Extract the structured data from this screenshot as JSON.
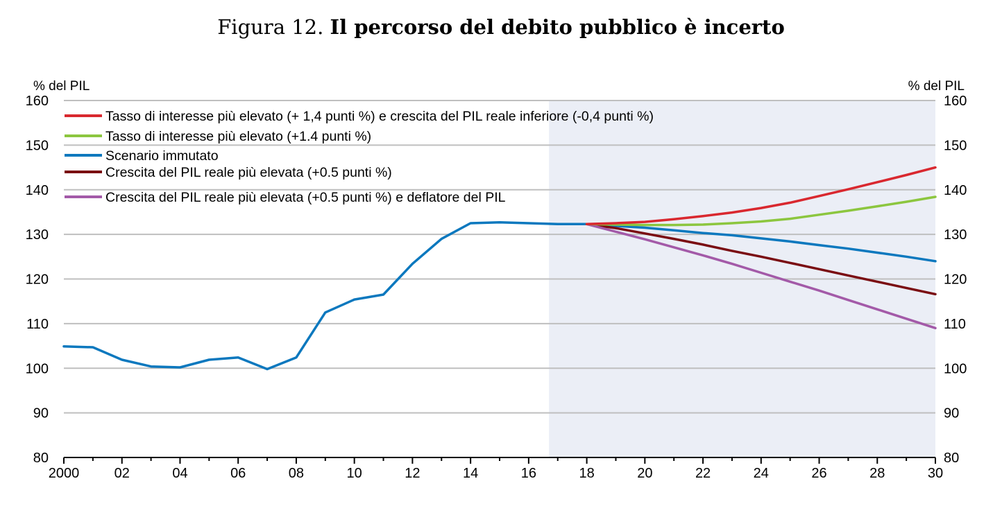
{
  "title": {
    "prefix": "Figura 12.",
    "main": "Il percorso del debito pubblico è incerto"
  },
  "chart_data": {
    "type": "line",
    "ylabel_left": "% del PIL",
    "ylabel_right": "% del PIL",
    "ylim": [
      80,
      160
    ],
    "yticks": [
      80,
      90,
      100,
      110,
      120,
      130,
      140,
      150,
      160
    ],
    "xlim": [
      2000,
      2030
    ],
    "xticks": [
      {
        "year": 2000,
        "label": "2000"
      },
      {
        "year": 2002,
        "label": "02"
      },
      {
        "year": 2004,
        "label": "04"
      },
      {
        "year": 2006,
        "label": "06"
      },
      {
        "year": 2008,
        "label": "08"
      },
      {
        "year": 2010,
        "label": "10"
      },
      {
        "year": 2012,
        "label": "12"
      },
      {
        "year": 2014,
        "label": "14"
      },
      {
        "year": 2016,
        "label": "16"
      },
      {
        "year": 2018,
        "label": "18"
      },
      {
        "year": 2020,
        "label": "20"
      },
      {
        "year": 2022,
        "label": "22"
      },
      {
        "year": 2024,
        "label": "24"
      },
      {
        "year": 2026,
        "label": "26"
      },
      {
        "year": 2028,
        "label": "28"
      },
      {
        "year": 2030,
        "label": "30"
      }
    ],
    "projection_shading": {
      "from": 2016.7,
      "to": 2030,
      "color": "#ebeef6"
    },
    "grid": true,
    "legend_position": "top-left",
    "series": [
      {
        "name": "Tasso di interesse più elevato (+ 1,4 punti %) e crescita del PIL reale inferiore (-0,4 punti %)",
        "color": "#d9282f",
        "x": [
          2018,
          2019,
          2020,
          2021,
          2022,
          2023,
          2024,
          2025,
          2026,
          2027,
          2028,
          2029,
          2030
        ],
        "values": [
          132.3,
          132.5,
          132.8,
          133.4,
          134.1,
          134.9,
          135.9,
          137.1,
          138.6,
          140.1,
          141.7,
          143.3,
          145.0
        ]
      },
      {
        "name": "Tasso di interesse più elevato (+1.4 punti %)",
        "color": "#8cc63f",
        "x": [
          2018,
          2019,
          2020,
          2021,
          2022,
          2023,
          2024,
          2025,
          2026,
          2027,
          2028,
          2029,
          2030
        ],
        "values": [
          132.3,
          132.2,
          132.1,
          132.1,
          132.2,
          132.5,
          132.9,
          133.5,
          134.4,
          135.3,
          136.3,
          137.3,
          138.4
        ]
      },
      {
        "name": "Scenario immutato",
        "color": "#0c78be",
        "x": [
          2000,
          2001,
          2002,
          2003,
          2004,
          2005,
          2006,
          2007,
          2008,
          2009,
          2010,
          2011,
          2012,
          2013,
          2014,
          2015,
          2016,
          2017,
          2018,
          2019,
          2020,
          2021,
          2022,
          2023,
          2024,
          2025,
          2026,
          2027,
          2028,
          2029,
          2030
        ],
        "values": [
          104.9,
          104.7,
          101.9,
          100.4,
          100.2,
          101.9,
          102.4,
          99.8,
          102.4,
          112.5,
          115.4,
          116.5,
          123.4,
          129.0,
          132.5,
          132.7,
          132.5,
          132.3,
          132.3,
          131.9,
          131.5,
          130.9,
          130.3,
          129.8,
          129.1,
          128.4,
          127.6,
          126.8,
          125.9,
          125.0,
          124.0
        ]
      },
      {
        "name": "Crescita del PIL reale più elevata (+0.5 punti %)",
        "color": "#7a0d12",
        "x": [
          2018,
          2019,
          2020,
          2021,
          2022,
          2023,
          2024,
          2025,
          2026,
          2027,
          2028,
          2029,
          2030
        ],
        "values": [
          132.3,
          131.4,
          130.2,
          129.0,
          127.7,
          126.3,
          125.0,
          123.6,
          122.2,
          120.8,
          119.4,
          118.0,
          116.6
        ]
      },
      {
        "name": "Crescita del PIL reale più elevata (+0.5 punti %) e deflatore del PIL",
        "color": "#a35aa8",
        "x": [
          2018,
          2019,
          2020,
          2021,
          2022,
          2023,
          2024,
          2025,
          2026,
          2027,
          2028,
          2029,
          2030
        ],
        "values": [
          132.3,
          130.6,
          128.9,
          127.1,
          125.3,
          123.4,
          121.4,
          119.4,
          117.4,
          115.3,
          113.2,
          111.1,
          109.0
        ]
      }
    ]
  }
}
